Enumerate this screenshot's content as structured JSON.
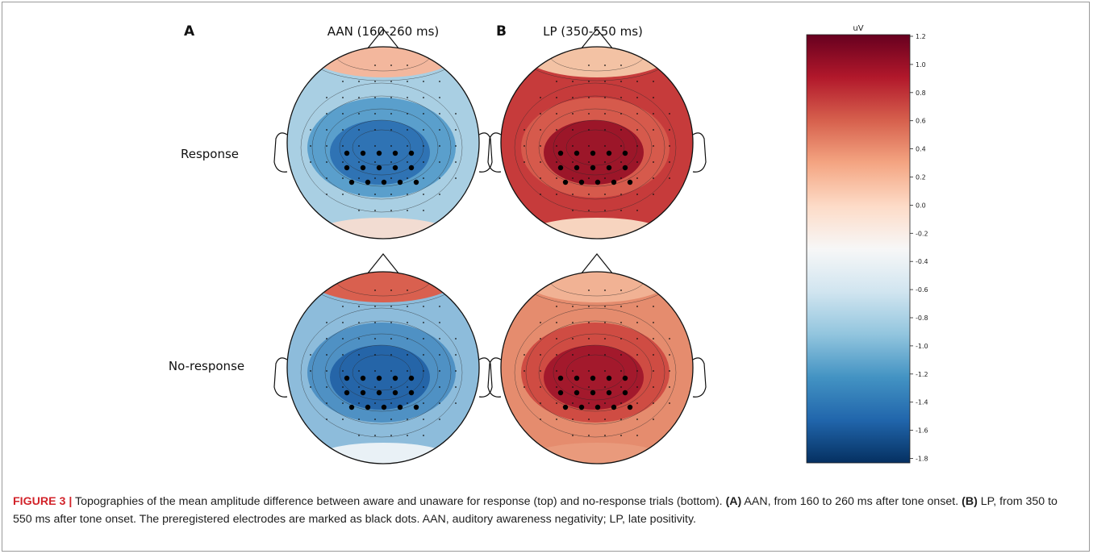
{
  "figure": {
    "panel_a": "A",
    "panel_b": "B",
    "col_a_title": "AAN (160-260 ms)",
    "col_b_title": "LP (350-550 ms)",
    "row_labels": [
      "Response",
      "No-response"
    ],
    "colorbar": {
      "unit": "uV",
      "ticks": [
        "1.2",
        "1.0",
        "0.8",
        "0.6",
        "0.4",
        "0.2",
        "0.0",
        "-0.2",
        "-0.4",
        "-0.6",
        "-0.8",
        "-1.0",
        "-1.2",
        "-1.4",
        "-1.6",
        "-1.8"
      ],
      "colormap": [
        "#67001f",
        "#b2182b",
        "#d6604d",
        "#f4a582",
        "#fddbc7",
        "#f7f7f7",
        "#d1e5f0",
        "#92c5de",
        "#4393c3",
        "#2166ac",
        "#053061"
      ]
    },
    "maps": [
      {
        "id": "aan-response",
        "colors": {
          "base": "#a9cfe3",
          "mid": "#5a9fcc",
          "core": "#2f73b4",
          "front": "#f3b79d",
          "back": "#f2dcd2"
        }
      },
      {
        "id": "lp-response",
        "colors": {
          "base": "#c63b3b",
          "mid": "#d65a4c",
          "core": "#9c1629",
          "front": "#f3c2a4",
          "back": "#f7d4bf"
        }
      },
      {
        "id": "aan-noresponse",
        "colors": {
          "base": "#8dbcdb",
          "mid": "#4f91c4",
          "core": "#2565a8",
          "front": "#d9604f",
          "back": "#e9f1f6"
        }
      },
      {
        "id": "lp-noresponse",
        "colors": {
          "base": "#e58c6e",
          "mid": "#cf4c43",
          "core": "#a3192c",
          "front": "#f1b294",
          "back": "#e99a7c"
        }
      }
    ]
  },
  "caption": {
    "label": "FIGURE 3 |",
    "t1": " Topographies of the mean amplitude difference between aware and unaware for response (top) and no-response trials (bottom). ",
    "a_tag": "(A)",
    "t2": " AAN, from 160 to 260 ms after tone onset. ",
    "b_tag": "(B)",
    "t3": " LP, from 350 to 550 ms after tone onset. The preregistered electrodes are marked as black dots. AAN, auditory awareness negativity; LP, late positivity."
  }
}
